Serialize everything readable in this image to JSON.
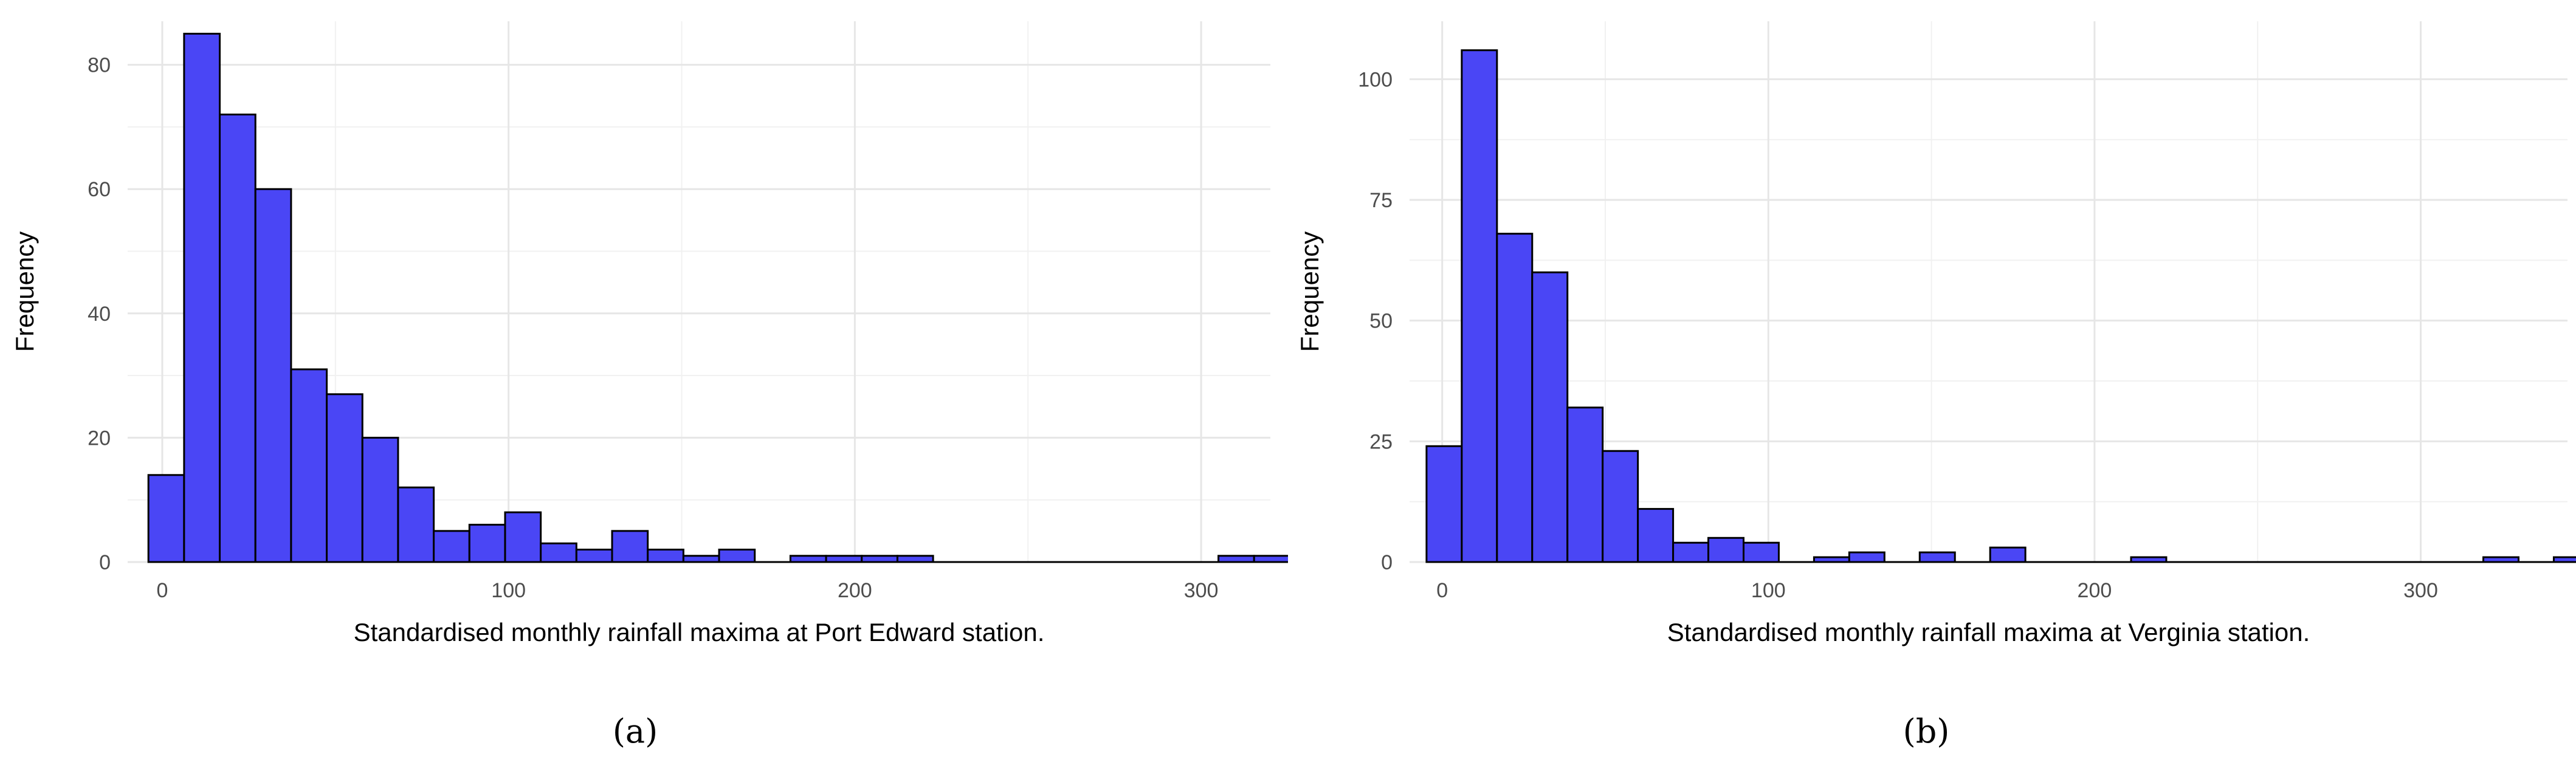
{
  "chart_data": [
    {
      "type": "bar",
      "panel": "(a)",
      "xlabel": "Standardised monthly rainfall maxima at Port Edward station.",
      "ylabel": "Frequency",
      "xlim": [
        -10,
        320
      ],
      "ylim": [
        0,
        87
      ],
      "x_ticks": [
        0,
        100,
        200,
        300
      ],
      "y_ticks": [
        0,
        20,
        40,
        60,
        80
      ],
      "bin_width": 10.3,
      "x_start": -4,
      "values": [
        14,
        85,
        72,
        60,
        31,
        27,
        20,
        12,
        5,
        6,
        8,
        3,
        2,
        5,
        2,
        1,
        2,
        0,
        1,
        1,
        1,
        1,
        0,
        0,
        0,
        0,
        0,
        0,
        0,
        0,
        1,
        1
      ],
      "bar_color": "#4a46f5",
      "grid": true
    },
    {
      "type": "bar",
      "panel": "(b)",
      "xlabel": "Standardised monthly rainfall maxima at Verginia station.",
      "ylabel": "Frequency",
      "xlim": [
        -10,
        345
      ],
      "ylim": [
        0,
        112
      ],
      "x_ticks": [
        0,
        100,
        200,
        300
      ],
      "y_ticks": [
        0,
        25,
        50,
        75,
        100
      ],
      "bin_width": 10.8,
      "x_start": -4.8,
      "values": [
        24,
        106,
        68,
        60,
        32,
        23,
        11,
        4,
        5,
        4,
        0,
        1,
        2,
        0,
        2,
        0,
        3,
        0,
        0,
        0,
        1,
        0,
        0,
        0,
        0,
        0,
        0,
        0,
        0,
        0,
        1,
        0,
        1
      ],
      "bar_color": "#4a46f5",
      "grid": true
    }
  ]
}
